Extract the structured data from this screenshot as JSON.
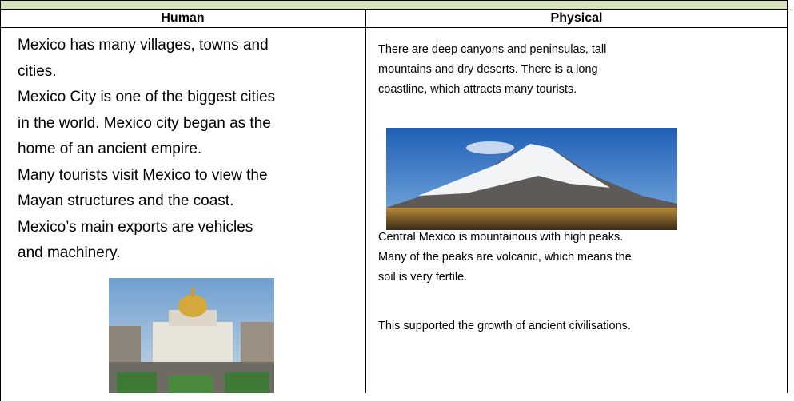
{
  "table": {
    "human": {
      "heading": "Human",
      "lines": [
        "Mexico has many villages, towns and",
        "cities.",
        "Mexico City is one of the biggest cities",
        "in the world. Mexico city began as the",
        "home of an ancient empire.",
        "Many tourists visit Mexico to view the",
        "Mayan structures and the coast.",
        "Mexico’s main exports are vehicles",
        "and machinery."
      ]
    },
    "physical": {
      "heading": "Physical",
      "paragraphs": [
        [
          "There are deep canyons and peninsulas, tall",
          "mountains and dry deserts. There is a long",
          "coastline, which attracts many tourists."
        ],
        [
          "Central Mexico is mountainous with high peaks.",
          "Many of the peaks are volcanic, which means the",
          "soil is very fertile."
        ],
        [
          "This supported the growth of ancient civilisations."
        ]
      ]
    }
  }
}
